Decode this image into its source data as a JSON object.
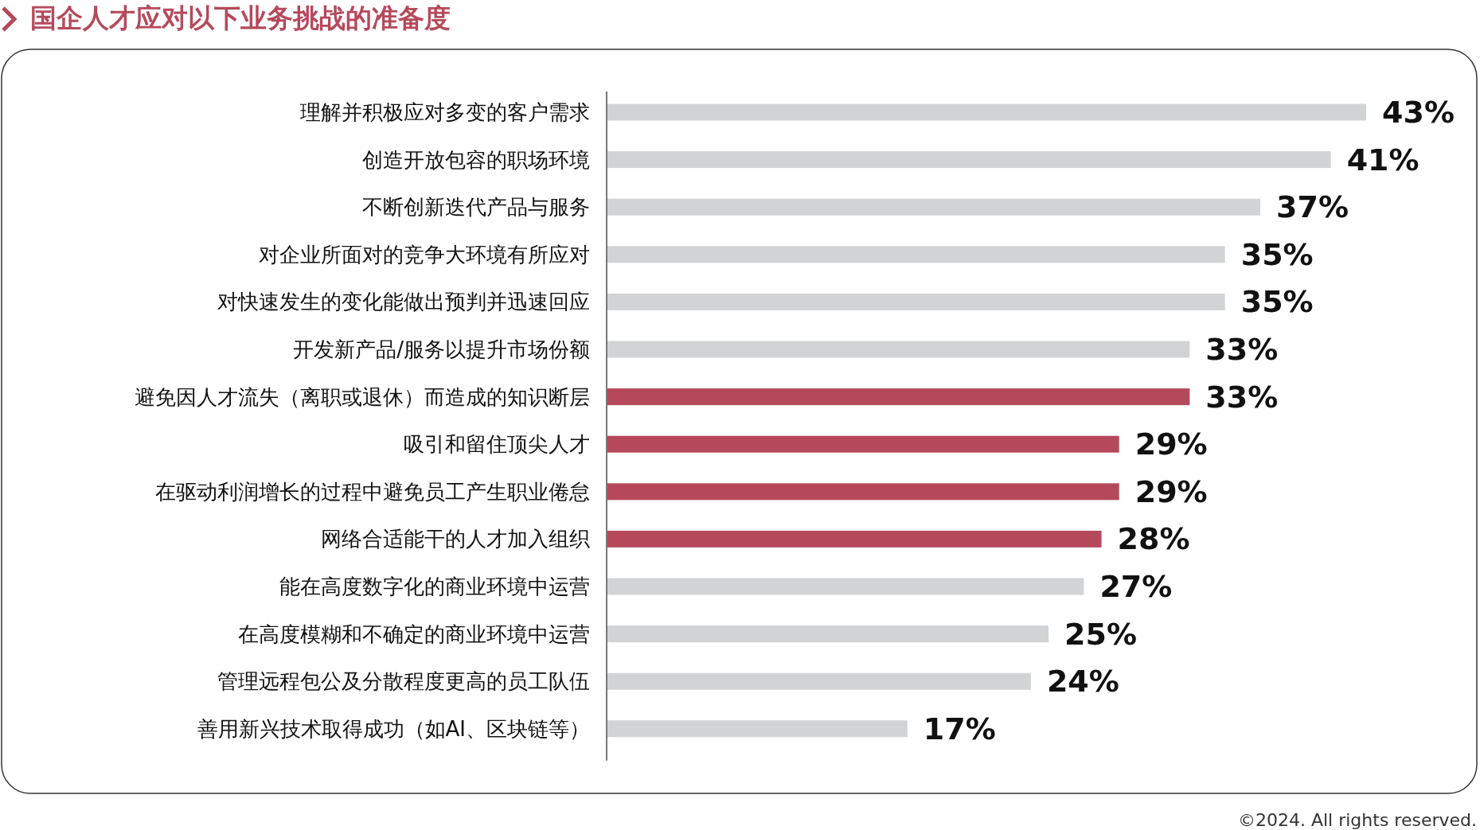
{
  "chart_data": {
    "type": "bar",
    "orientation": "horizontal",
    "title": "国企人才应对以下业务挑战的准备度",
    "categories": [
      "理解并积极应对多变的客户需求",
      "创造开放包容的职场环境",
      "不断创新迭代产品与服务",
      "对企业所面对的竞争大环境有所应对",
      "对快速发生的变化能做出预判并迅速回应",
      "开发新产品/服务以提升市场份额",
      "避免因人才流失（离职或退休）而造成的知识断层",
      "吸引和留住顶尖人才",
      "在驱动利润增长的过程中避免员工产生职业倦怠",
      "网络合适能干的人才加入组织",
      "能在高度数字化的商业环境中运营",
      "在高度模糊和不确定的商业环境中运营",
      "管理远程包公及分散程度更高的员工队伍",
      "善用新兴技术取得成功（如AI、区块链等）"
    ],
    "values": [
      43,
      41,
      37,
      35,
      35,
      33,
      33,
      29,
      29,
      28,
      27,
      25,
      24,
      17
    ],
    "value_labels": [
      "43%",
      "41%",
      "37%",
      "35%",
      "35%",
      "33%",
      "33%",
      "29%",
      "29%",
      "28%",
      "27%",
      "25%",
      "24%",
      "17%"
    ],
    "colors": [
      "#d1d3d4",
      "#d1d3d4",
      "#d1d3d4",
      "#d1d3d4",
      "#d1d3d4",
      "#d1d3d4",
      "#b5495b",
      "#b5495b",
      "#b5495b",
      "#b5495b",
      "#d1d3d4",
      "#d1d3d4",
      "#d1d3d4",
      "#d1d3d4"
    ],
    "annotations": [
      "©2024. All rights reserved."
    ]
  }
}
